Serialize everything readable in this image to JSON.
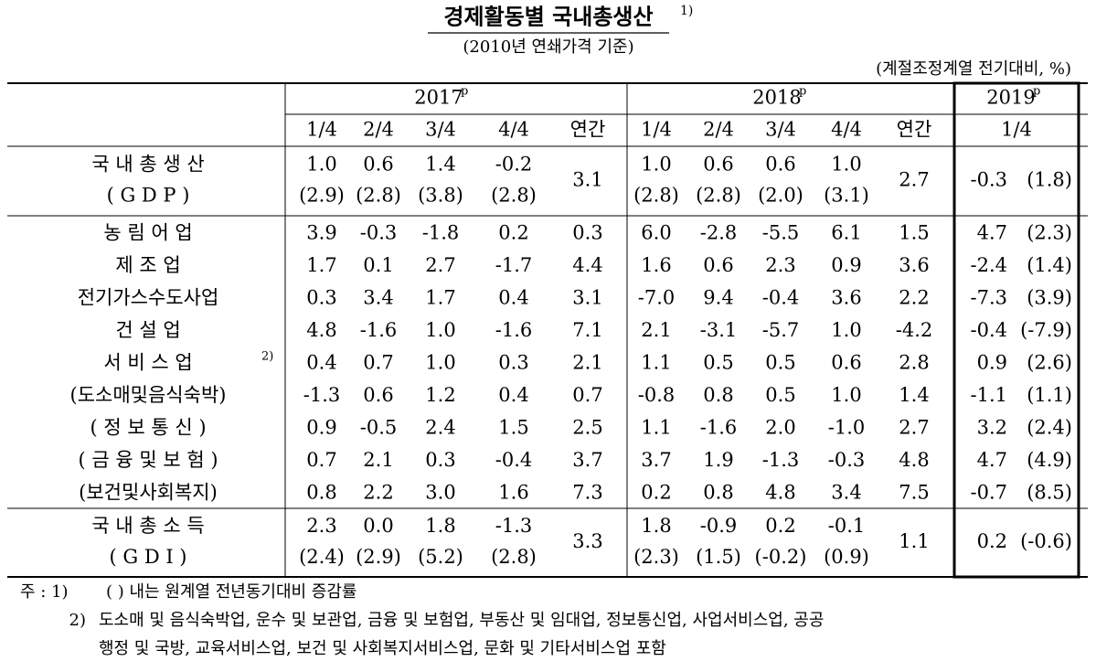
{
  "title": "경제활동별 국내총생산",
  "title_note": "1)",
  "subtitle": "(2010년 연쇄가격 기준)",
  "unit": "(계절조정계열 전기대비, %)",
  "table": {
    "years": [
      {
        "label": "2017",
        "mark": "p"
      },
      {
        "label": "2018",
        "mark": "p"
      },
      {
        "label": "2019",
        "mark": "p"
      }
    ],
    "periods": [
      "1/4",
      "2/4",
      "3/4",
      "4/4",
      "연간",
      "1/4",
      "2/4",
      "3/4",
      "4/4",
      "연간",
      "1/4"
    ],
    "rows": [
      {
        "label": [
          "국 내 총 생 산",
          "( G D P )"
        ],
        "cells": [
          [
            "1.0",
            "(2.9)"
          ],
          [
            "0.6",
            "(2.8)"
          ],
          [
            "1.4",
            "(3.8)"
          ],
          [
            "-0.2",
            "(2.8)"
          ],
          "3.1",
          [
            "1.0",
            "(2.8)"
          ],
          [
            "0.6",
            "(2.8)"
          ],
          [
            "0.6",
            "(2.0)"
          ],
          [
            "1.0",
            "(3.1)"
          ],
          "2.7",
          [
            "-0.3",
            "(1.8)"
          ]
        ]
      },
      {
        "label": [
          "농 림 어 업"
        ],
        "cells": [
          "3.9",
          "-0.3",
          "-1.8",
          "0.2",
          "0.3",
          "6.0",
          "-2.8",
          "-5.5",
          "6.1",
          "1.5",
          [
            "4.7",
            "(2.3)"
          ]
        ]
      },
      {
        "label": [
          "제 조 업"
        ],
        "cells": [
          "1.7",
          "0.1",
          "2.7",
          "-1.7",
          "4.4",
          "1.6",
          "0.6",
          "2.3",
          "0.9",
          "3.6",
          [
            "-2.4",
            "(1.4)"
          ]
        ]
      },
      {
        "label": [
          "전기가스수도사업"
        ],
        "cells": [
          "0.3",
          "3.4",
          "1.7",
          "0.4",
          "3.1",
          "-7.0",
          "9.4",
          "-0.4",
          "3.6",
          "2.2",
          [
            "-7.3",
            "(3.9)"
          ]
        ]
      },
      {
        "label": [
          "건 설 업"
        ],
        "cells": [
          "4.8",
          "-1.6",
          "1.0",
          "-1.6",
          "7.1",
          "2.1",
          "-3.1",
          "-5.7",
          "1.0",
          "-4.2",
          [
            "-0.4",
            "(-7.9)"
          ]
        ]
      },
      {
        "label": [
          "서 비 스 업"
        ],
        "note": "2)",
        "cells": [
          "0.4",
          "0.7",
          "1.0",
          "0.3",
          "2.1",
          "1.1",
          "0.5",
          "0.5",
          "0.6",
          "2.8",
          [
            "0.9",
            "(2.6)"
          ]
        ]
      },
      {
        "label": [
          "(도소매및음식숙박)"
        ],
        "cells": [
          "-1.3",
          "0.6",
          "1.2",
          "0.4",
          "0.7",
          "-0.8",
          "0.8",
          "0.5",
          "1.0",
          "1.4",
          [
            "-1.1",
            "(1.1)"
          ]
        ]
      },
      {
        "label": [
          "( 정 보 통 신 )"
        ],
        "cells": [
          "0.9",
          "-0.5",
          "2.4",
          "1.5",
          "2.5",
          "1.1",
          "-1.6",
          "2.0",
          "-1.0",
          "2.7",
          [
            "3.2",
            "(2.4)"
          ]
        ]
      },
      {
        "label": [
          "( 금 융 및 보 험 )"
        ],
        "cells": [
          "0.7",
          "2.1",
          "0.3",
          "-0.4",
          "3.7",
          "3.7",
          "1.9",
          "-1.3",
          "-0.3",
          "4.8",
          [
            "4.7",
            "(4.9)"
          ]
        ]
      },
      {
        "label": [
          "(보건및사회복지)"
        ],
        "cells": [
          "0.8",
          "2.2",
          "3.0",
          "1.6",
          "7.3",
          "0.2",
          "0.8",
          "4.8",
          "3.4",
          "7.5",
          [
            "-0.7",
            "(8.5)"
          ]
        ]
      },
      {
        "label": [
          "국 내 총 소 득",
          "( G D I )"
        ],
        "cells": [
          [
            "2.3",
            "(2.4)"
          ],
          [
            "0.0",
            "(2.9)"
          ],
          [
            "1.8",
            "(5.2)"
          ],
          [
            "-1.3",
            "(2.8)"
          ],
          "3.3",
          [
            "1.8",
            "(2.3)"
          ],
          [
            "-0.9",
            "(1.5)"
          ],
          [
            "0.2",
            "(-0.2)"
          ],
          [
            "-0.1",
            "(0.9)"
          ],
          "1.1",
          [
            "0.2",
            "(-0.6)"
          ]
        ]
      }
    ]
  },
  "notes": [
    {
      "label": "주 : 1)",
      "lines": [
        "(   ) 내는 원계열 전년동기대비 증감률"
      ]
    },
    {
      "label": "2)",
      "lines": [
        "도소매 및 음식숙박업, 운수 및 보관업, 금융 및 보험업, 부동산 및 임대업, 정보통신업, 사업서비스업, 공공",
        "행정 및 국방, 교육서비스업, 보건 및 사회복지서비스업, 문화 및 기타서비스업 포함"
      ]
    }
  ]
}
